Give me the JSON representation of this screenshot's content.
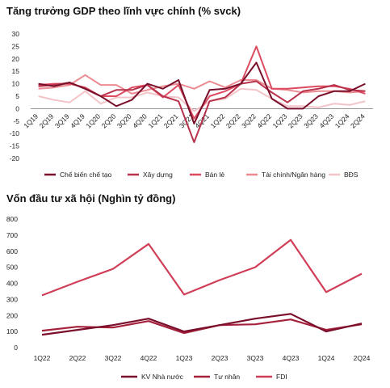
{
  "chart_data": [
    {
      "type": "line",
      "title": "Tăng trưởng GDP theo lĩnh vực chính (% svck)",
      "x": [
        "1Q19",
        "2Q19",
        "3Q19",
        "4Q19",
        "1Q20",
        "2Q20",
        "3Q20",
        "4Q20",
        "1Q21",
        "2Q21",
        "3Q21",
        "4Q21",
        "1Q22",
        "2Q22",
        "3Q22",
        "4Q22",
        "1Q23",
        "2Q23",
        "3Q23",
        "4Q23",
        "1Q24",
        "2Q24"
      ],
      "ylim": [
        -20,
        30
      ],
      "yticks": [
        30,
        25,
        20,
        15,
        10,
        5,
        0,
        -5,
        -10,
        -15,
        -20
      ],
      "legend_position": "bottom",
      "series": [
        {
          "name": "Chế biến chế tạo",
          "color": "#7a0f2b",
          "values": [
            10,
            9,
            10.5,
            8,
            5,
            1,
            3.5,
            10,
            8,
            11.5,
            -6,
            7.5,
            8,
            10,
            18.5,
            4,
            0,
            0,
            5,
            7,
            7,
            10
          ]
        },
        {
          "name": "Xây dựng",
          "color": "#b8324c",
          "values": [
            9,
            9.5,
            10.5,
            8,
            5,
            7.5,
            7.5,
            9.5,
            5,
            3,
            -13.5,
            3,
            4.5,
            10,
            11,
            6.5,
            2.5,
            7,
            8,
            9.5,
            7.5,
            7
          ]
        },
        {
          "name": "Bán lẻ",
          "color": "#dc4b60",
          "values": [
            9.5,
            10,
            10,
            8.5,
            5,
            5,
            8.5,
            9.5,
            4.5,
            9.5,
            -4,
            5,
            7,
            10,
            25,
            8,
            8,
            8.5,
            9,
            9,
            8,
            6
          ]
        },
        {
          "name": "Tài chính/Ngân hàng",
          "color": "#ec8c92",
          "values": [
            8,
            8.5,
            9.5,
            13.5,
            9.5,
            9.5,
            6,
            7.5,
            9,
            10,
            8,
            11,
            8.5,
            11.5,
            11.5,
            8,
            7.5,
            6.5,
            7,
            7,
            6.5,
            7
          ]
        },
        {
          "name": "BĐS",
          "color": "#f3c4c7",
          "values": [
            5,
            3.5,
            2.5,
            7,
            2,
            4.5,
            4.5,
            6.5,
            5,
            4.5,
            -1,
            3,
            4,
            8,
            7.5,
            4,
            1,
            1,
            0.5,
            2,
            1.5,
            3
          ]
        }
      ]
    },
    {
      "type": "line",
      "title": "Vốn đầu tư xã hội (Nghìn tỷ đồng)",
      "x": [
        "1Q22",
        "2Q22",
        "3Q22",
        "4Q22",
        "1Q23",
        "2Q23",
        "3Q23",
        "4Q23",
        "1Q24",
        "2Q24"
      ],
      "ylim": [
        0,
        800
      ],
      "yticks": [
        800,
        700,
        600,
        500,
        400,
        300,
        200,
        100,
        0
      ],
      "legend_position": "bottom",
      "series": [
        {
          "name": "KV Nhà nước",
          "color": "#7a0f2b",
          "values": [
            80,
            110,
            140,
            180,
            100,
            140,
            180,
            210,
            100,
            150
          ]
        },
        {
          "name": "Tư nhân",
          "color": "#a5213a",
          "values": [
            105,
            130,
            125,
            165,
            90,
            140,
            145,
            175,
            110,
            145
          ]
        },
        {
          "name": "FDI",
          "color": "#d03e58",
          "values": [
            325,
            410,
            490,
            645,
            330,
            420,
            500,
            670,
            345,
            460
          ]
        }
      ]
    }
  ]
}
